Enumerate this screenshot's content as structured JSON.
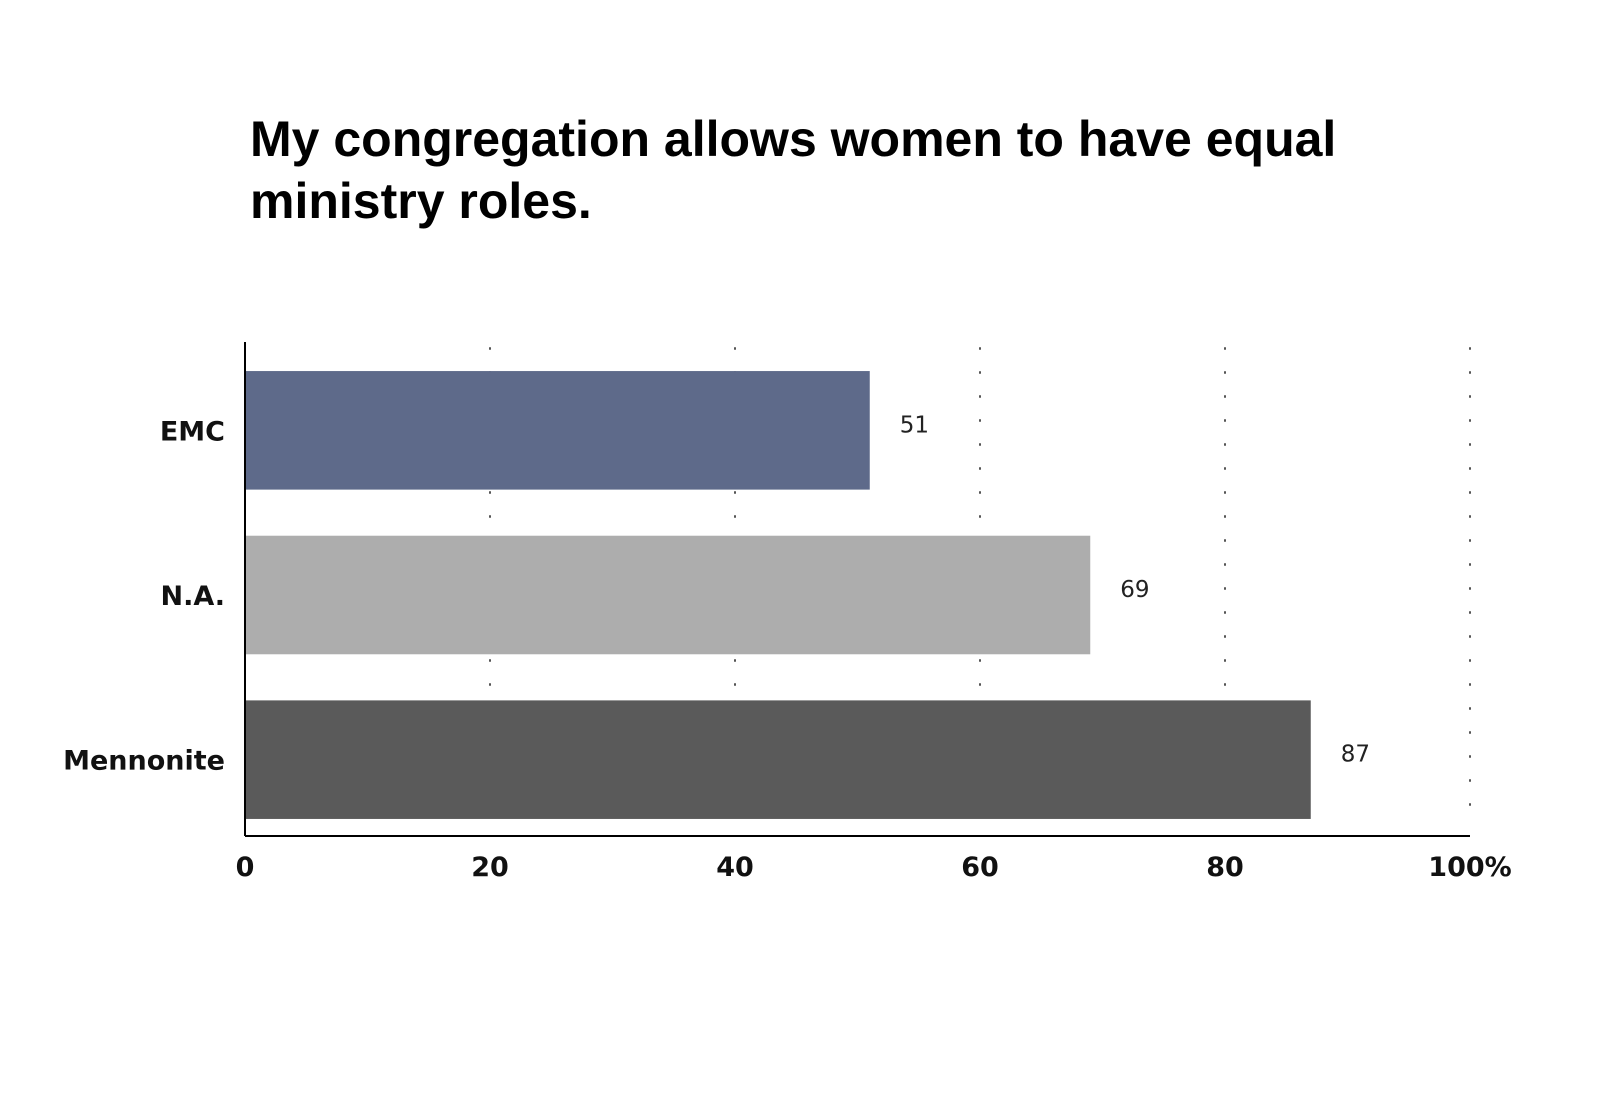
{
  "chart_data": {
    "type": "bar",
    "orientation": "horizontal",
    "title": "My congregation allows women to have equal ministry roles.",
    "categories": [
      "EMC",
      "N.A.",
      "Mennonite"
    ],
    "values": [
      51,
      69,
      87
    ],
    "data_labels": [
      "51",
      "69",
      "87"
    ],
    "colors": [
      "#5e6a8a",
      "#adadad",
      "#5a5a5a"
    ],
    "xlim": [
      0,
      100
    ],
    "x_ticks": [
      0,
      20,
      40,
      60,
      80,
      100
    ],
    "x_tick_labels": [
      "0",
      "20",
      "40",
      "60",
      "80",
      "100%"
    ],
    "grid": "vertical-dotted",
    "legend": "none"
  }
}
